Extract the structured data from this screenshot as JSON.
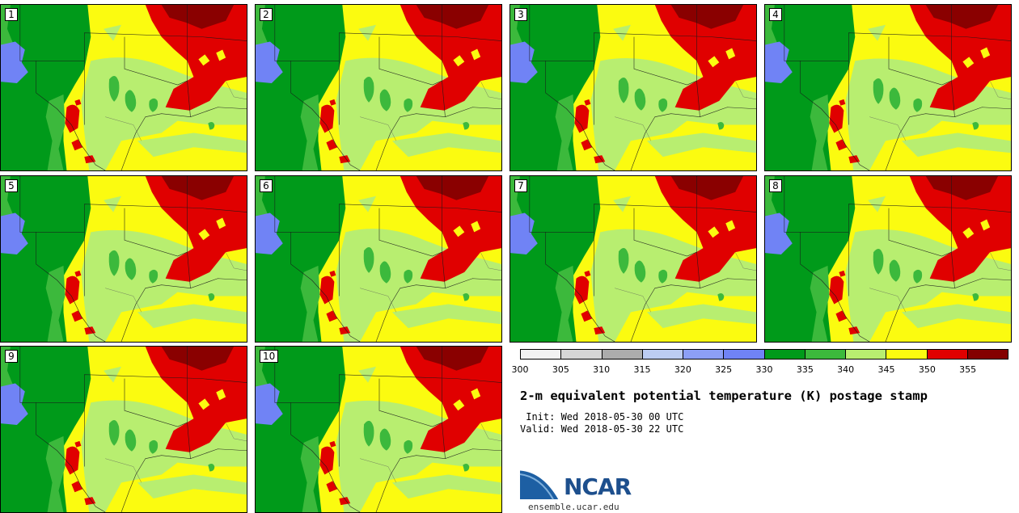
{
  "panels": [
    {
      "label": "1"
    },
    {
      "label": "2"
    },
    {
      "label": "3"
    },
    {
      "label": "4"
    },
    {
      "label": "5"
    },
    {
      "label": "6"
    },
    {
      "label": "7"
    },
    {
      "label": "8"
    },
    {
      "label": "9"
    },
    {
      "label": "10"
    }
  ],
  "map_colors": {
    "dark_green": "#009a1a",
    "mid_green": "#3cb93c",
    "light_green": "#b8ee70",
    "yellow": "#fbfb10",
    "red": "#e00000",
    "dark_red": "#8a0000",
    "blue": "#7083f5"
  },
  "colorbar": {
    "colors": [
      "#f2f2f2",
      "#d6d6d6",
      "#acacac",
      "#bcccf2",
      "#8c9ff6",
      "#7083f5",
      "#009a1a",
      "#3cb93c",
      "#b8ee70",
      "#fbfb10",
      "#e00000",
      "#840000"
    ],
    "ticks": [
      "300",
      "305",
      "310",
      "315",
      "320",
      "325",
      "330",
      "335",
      "340",
      "345",
      "350",
      "355"
    ]
  },
  "title": "2-m equivalent potential temperature (K) postage stamp",
  "init": " Init: Wed 2018-05-30 00 UTC",
  "valid": "Valid: Wed 2018-05-30 22 UTC",
  "logo_text": "NCAR",
  "url": "ensemble.ucar.edu"
}
